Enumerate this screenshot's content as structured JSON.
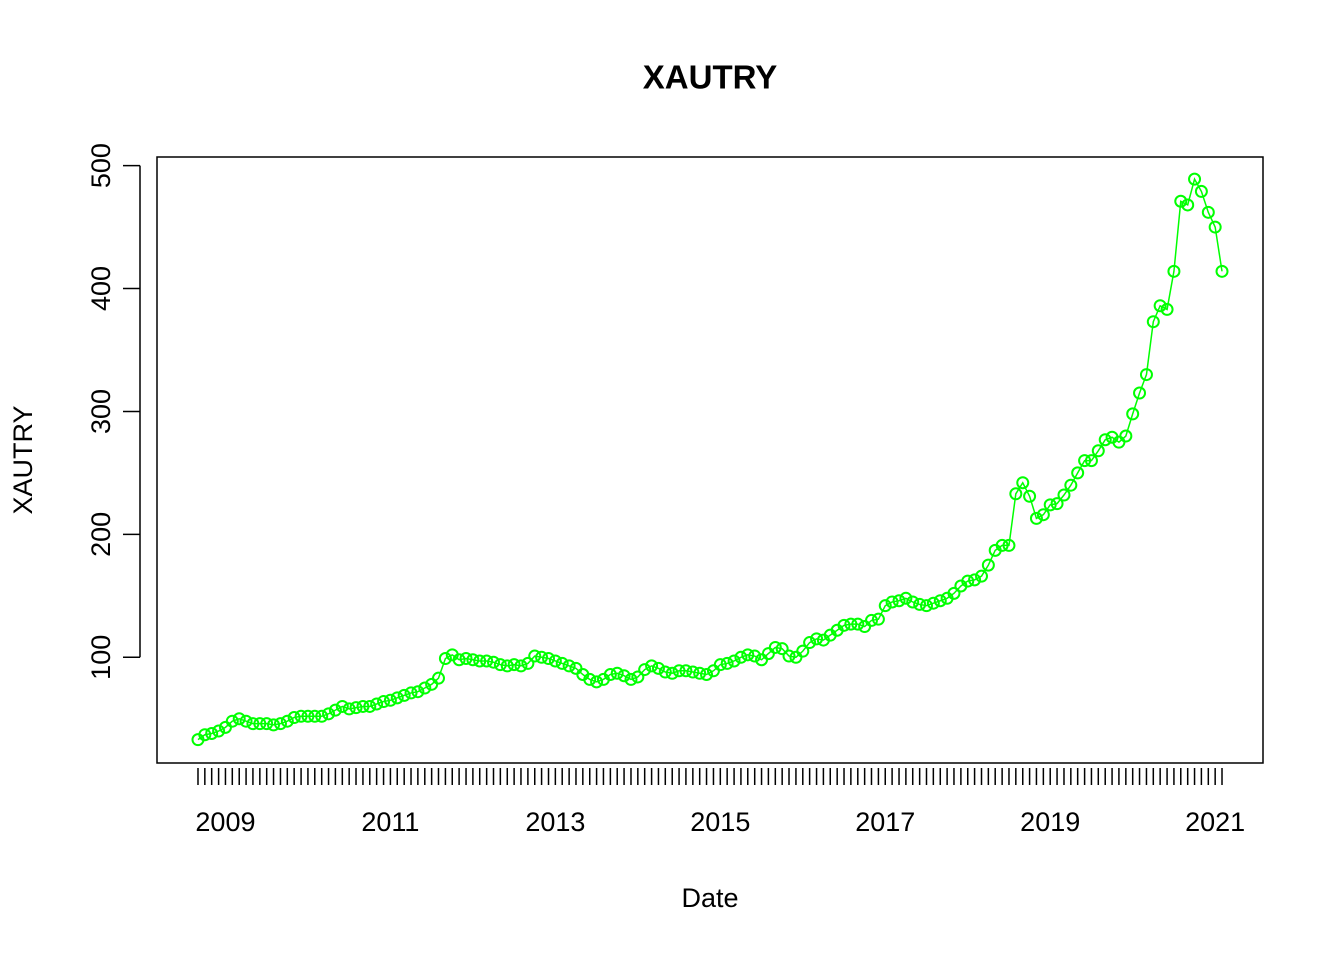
{
  "chart_data": {
    "type": "line",
    "title": "XAUTRY",
    "xlabel": "Date",
    "ylabel": "XAUTRY",
    "color": "#00ff00",
    "marker": "circle",
    "x": [
      2008.667,
      2008.75,
      2008.833,
      2008.917,
      2009,
      2009.083,
      2009.167,
      2009.25,
      2009.333,
      2009.417,
      2009.5,
      2009.583,
      2009.667,
      2009.75,
      2009.833,
      2009.917,
      2010,
      2010.083,
      2010.167,
      2010.25,
      2010.333,
      2010.417,
      2010.5,
      2010.583,
      2010.667,
      2010.75,
      2010.833,
      2010.917,
      2011,
      2011.083,
      2011.167,
      2011.25,
      2011.333,
      2011.417,
      2011.5,
      2011.583,
      2011.667,
      2011.75,
      2011.833,
      2011.917,
      2012,
      2012.083,
      2012.167,
      2012.25,
      2012.333,
      2012.417,
      2012.5,
      2012.583,
      2012.667,
      2012.75,
      2012.833,
      2012.917,
      2013,
      2013.083,
      2013.167,
      2013.25,
      2013.333,
      2013.417,
      2013.5,
      2013.583,
      2013.667,
      2013.75,
      2013.833,
      2013.917,
      2014,
      2014.083,
      2014.167,
      2014.25,
      2014.333,
      2014.417,
      2014.5,
      2014.583,
      2014.667,
      2014.75,
      2014.833,
      2014.917,
      2015,
      2015.083,
      2015.167,
      2015.25,
      2015.333,
      2015.417,
      2015.5,
      2015.583,
      2015.667,
      2015.75,
      2015.833,
      2015.917,
      2016,
      2016.083,
      2016.167,
      2016.25,
      2016.333,
      2016.417,
      2016.5,
      2016.583,
      2016.667,
      2016.75,
      2016.833,
      2016.917,
      2017,
      2017.083,
      2017.167,
      2017.25,
      2017.333,
      2017.417,
      2017.5,
      2017.583,
      2017.667,
      2017.75,
      2017.833,
      2017.917,
      2018,
      2018.083,
      2018.167,
      2018.25,
      2018.333,
      2018.417,
      2018.5,
      2018.583,
      2018.667,
      2018.75,
      2018.833,
      2018.917,
      2019,
      2019.083,
      2019.167,
      2019.25,
      2019.333,
      2019.417,
      2019.5,
      2019.583,
      2019.667,
      2019.75,
      2019.833,
      2019.917,
      2020,
      2020.083,
      2020.167,
      2020.25,
      2020.333,
      2020.417,
      2020.5,
      2020.583,
      2020.667,
      2020.75,
      2020.833,
      2020.917,
      2021,
      2021.083
    ],
    "values": [
      33,
      37,
      38,
      40,
      43,
      48,
      50,
      48,
      46,
      46,
      46,
      45,
      46,
      48,
      51,
      52,
      52,
      52,
      52,
      54,
      57,
      60,
      58,
      59,
      60,
      60,
      62,
      64,
      65,
      67,
      69,
      71,
      72,
      75,
      78,
      83,
      99,
      102,
      98,
      99,
      98,
      97,
      97,
      96,
      94,
      93,
      94,
      93,
      95,
      101,
      100,
      99,
      97,
      95,
      93,
      91,
      86,
      82,
      80,
      82,
      86,
      87,
      85,
      82,
      84,
      90,
      93,
      91,
      88,
      87,
      89,
      89,
      88,
      87,
      86,
      89,
      94,
      95,
      97,
      100,
      102,
      101,
      98,
      103,
      108,
      107,
      101,
      100,
      105,
      112,
      115,
      114,
      118,
      122,
      126,
      127,
      127,
      125,
      130,
      131,
      142,
      145,
      146,
      148,
      145,
      143,
      142,
      144,
      146,
      148,
      152,
      158,
      162,
      163,
      166,
      175,
      187,
      191,
      191,
      233,
      242,
      231,
      213,
      216,
      224,
      225,
      232,
      240,
      250,
      260,
      260,
      268,
      277,
      279,
      275,
      280,
      298,
      315,
      330,
      373,
      386,
      383,
      414,
      471,
      468,
      489,
      479,
      462,
      450,
      414
    ],
    "xlim": [
      2008.17,
      2021.58
    ],
    "ylim": [
      14,
      507
    ],
    "xticks": [
      2009,
      2011,
      2013,
      2015,
      2017,
      2019,
      2021
    ],
    "yticks": [
      100,
      200,
      300,
      400,
      500
    ]
  }
}
